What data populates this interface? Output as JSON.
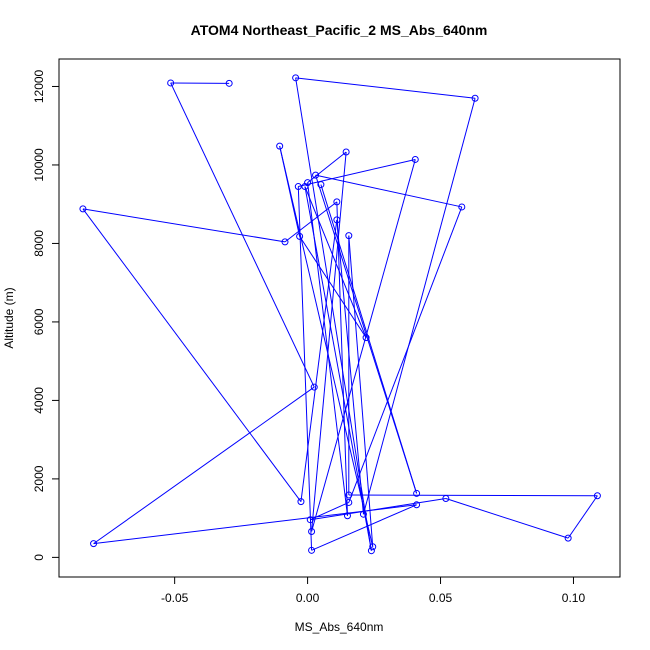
{
  "chart_data": {
    "type": "line",
    "title": "ATOM4 Northeast_Pacific_2 MS_Abs_640nm",
    "xlabel": "MS_Abs_640nm",
    "ylabel": "Altitude (m)",
    "xlim": [
      -0.0935,
      0.1175
    ],
    "ylim": [
      -500,
      12700
    ],
    "xticks": [
      -0.05,
      0.0,
      0.05,
      0.1
    ],
    "xtick_labels": [
      "-0.05",
      "0.00",
      "0.05",
      "0.10"
    ],
    "yticks": [
      0,
      2000,
      4000,
      6000,
      8000,
      10000,
      12000
    ],
    "ytick_labels": [
      "0",
      "2000",
      "4000",
      "6000",
      "8000",
      "10000",
      "12000"
    ],
    "grid": false,
    "line_color": "#0000ff",
    "marker": "open-circle",
    "series": [
      {
        "points": [
          {
            "x": -0.0295,
            "y": 12080
          },
          {
            "x": -0.0515,
            "y": 12090
          },
          {
            "x": 0.0025,
            "y": 4340
          },
          {
            "x": -0.0805,
            "y": 350
          },
          {
            "x": 0.041,
            "y": 1340
          },
          {
            "x": 0.0015,
            "y": 180
          },
          {
            "x": -0.0035,
            "y": 9450
          },
          {
            "x": 0.0405,
            "y": 10140
          },
          {
            "x": 0.0015,
            "y": 660
          },
          {
            "x": 0.0145,
            "y": 10330
          },
          {
            "x": 0.0,
            "y": 9550
          },
          {
            "x": 0.015,
            "y": 1060
          },
          {
            "x": 0.011,
            "y": 9060
          },
          {
            "x": -0.0085,
            "y": 8040
          },
          {
            "x": -0.0845,
            "y": 8880
          },
          {
            "x": -0.0025,
            "y": 1420
          },
          {
            "x": 0.011,
            "y": 8600
          },
          {
            "x": 0.021,
            "y": 1100
          },
          {
            "x": 0.063,
            "y": 11700
          },
          {
            "x": -0.0045,
            "y": 12220
          },
          {
            "x": 0.024,
            "y": 170
          },
          {
            "x": -0.001,
            "y": 9450
          },
          {
            "x": 0.022,
            "y": 5600
          },
          {
            "x": -0.003,
            "y": 8180
          },
          {
            "x": -0.0105,
            "y": 10480
          },
          {
            "x": 0.0245,
            "y": 270
          },
          {
            "x": 0.0155,
            "y": 8200
          },
          {
            "x": 0.0155,
            "y": 1590
          },
          {
            "x": 0.109,
            "y": 1570
          },
          {
            "x": 0.098,
            "y": 490
          },
          {
            "x": 0.052,
            "y": 1500
          },
          {
            "x": 0.001,
            "y": 960
          },
          {
            "x": 0.0155,
            "y": 1400
          },
          {
            "x": 0.058,
            "y": 8930
          },
          {
            "x": 0.003,
            "y": 9740
          },
          {
            "x": 0.041,
            "y": 1630
          },
          {
            "x": 0.005,
            "y": 9500
          }
        ]
      }
    ]
  }
}
